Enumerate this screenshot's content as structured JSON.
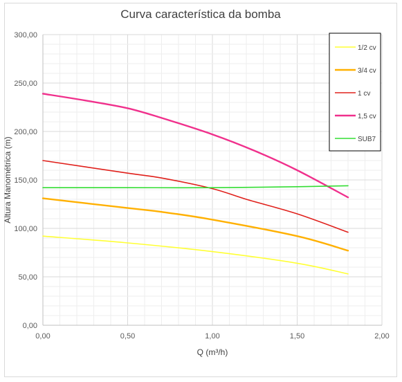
{
  "chart_data": {
    "type": "line",
    "title": "Curva característica da bomba",
    "xlabel": "Q (m³/h)",
    "ylabel": "Altura Manométrica (m)",
    "xlim": [
      0,
      2
    ],
    "ylim": [
      0,
      300
    ],
    "x_ticks": [
      "0,00",
      "0,50",
      "1,00",
      "1,50",
      "2,00"
    ],
    "y_ticks": [
      "0,00",
      "50,00",
      "100,00",
      "150,00",
      "200,00",
      "250,00",
      "300,00"
    ],
    "x_tick_values": [
      0,
      0.5,
      1,
      1.5,
      2
    ],
    "y_tick_values": [
      0,
      50,
      100,
      150,
      200,
      250,
      300
    ],
    "grid": true,
    "legend_position": "top-right",
    "series": [
      {
        "name": "1/2 cv",
        "color": "#ffff33",
        "points": [
          [
            0,
            92
          ],
          [
            0.5,
            85
          ],
          [
            1.0,
            76
          ],
          [
            1.5,
            64
          ],
          [
            1.8,
            53
          ]
        ]
      },
      {
        "name": "3/4 cv",
        "color": "#ffb000",
        "points": [
          [
            0,
            131
          ],
          [
            0.5,
            121
          ],
          [
            0.7,
            117
          ],
          [
            1.0,
            109
          ],
          [
            1.5,
            92
          ],
          [
            1.8,
            77
          ]
        ]
      },
      {
        "name": "1 cv",
        "color": "#e0201b",
        "points": [
          [
            0,
            170
          ],
          [
            0.5,
            157
          ],
          [
            0.7,
            152
          ],
          [
            1.0,
            141
          ],
          [
            1.2,
            130
          ],
          [
            1.5,
            115
          ],
          [
            1.8,
            96
          ]
        ]
      },
      {
        "name": "1,5 cv",
        "color": "#f0308c",
        "points": [
          [
            0,
            239
          ],
          [
            0.25,
            232
          ],
          [
            0.5,
            224
          ],
          [
            0.7,
            214
          ],
          [
            1.0,
            197
          ],
          [
            1.25,
            180
          ],
          [
            1.5,
            160
          ],
          [
            1.8,
            132
          ]
        ]
      },
      {
        "name": "SUB7",
        "color": "#33dd33",
        "points": [
          [
            0,
            142
          ],
          [
            0.5,
            142
          ],
          [
            1.0,
            142
          ],
          [
            1.5,
            143
          ],
          [
            1.8,
            144
          ]
        ]
      }
    ]
  }
}
